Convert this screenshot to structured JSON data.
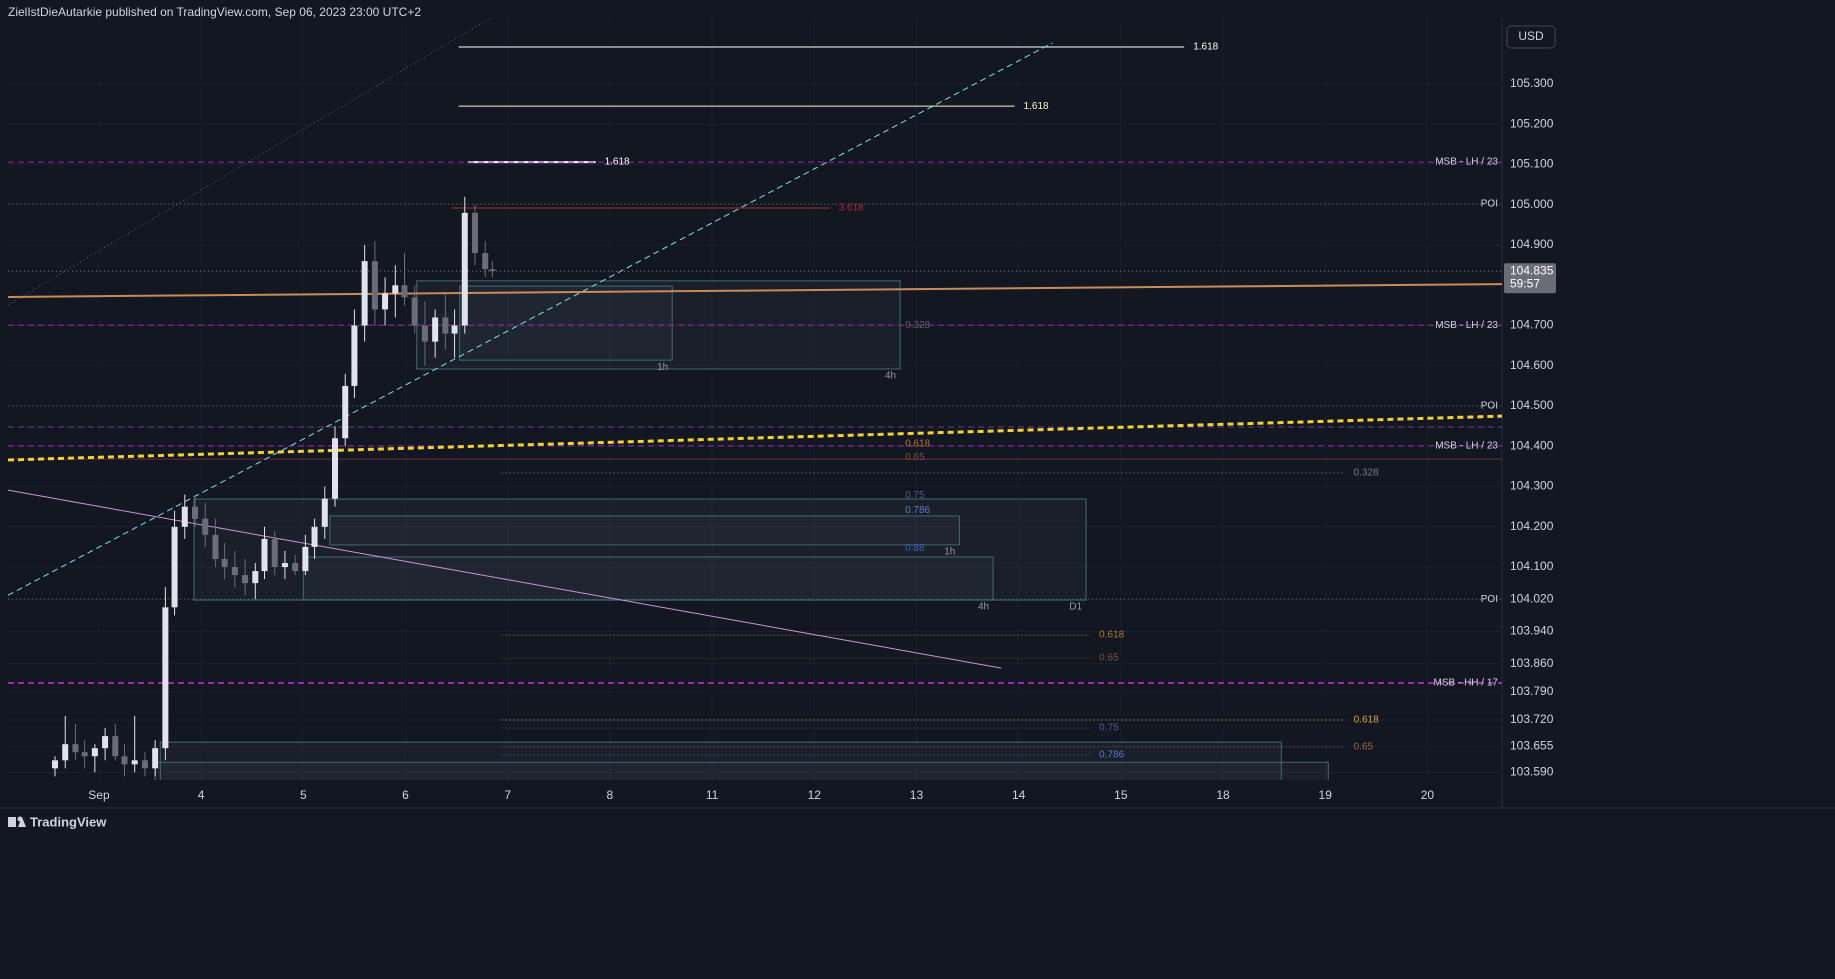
{
  "header": "ZielIstDieAutarkie published on TradingView.com, Sep 06, 2023 23:00 UTC+2",
  "currency": "USD",
  "footer": "TradingView",
  "chart_data": {
    "type": "candlestick",
    "categories": [
      "Sep",
      "4",
      "5",
      "6",
      "7",
      "8",
      "11",
      "12",
      "13",
      "14",
      "15",
      "18",
      "19",
      "20"
    ],
    "xlim": [
      -0.89,
      13.73
    ],
    "ylim": [
      103.571,
      105.464
    ],
    "yticks": [
      {
        "value": 105.3,
        "label": "105.300"
      },
      {
        "value": 105.2,
        "label": "105.200"
      },
      {
        "value": 105.1,
        "label": "105.100"
      },
      {
        "value": 105.0,
        "label": "105.000"
      },
      {
        "value": 104.9,
        "label": "104.900"
      },
      {
        "value": 104.7,
        "label": "104.700"
      },
      {
        "value": 104.6,
        "label": "104.600"
      },
      {
        "value": 104.5,
        "label": "104.500"
      },
      {
        "value": 104.4,
        "label": "104.400"
      },
      {
        "value": 104.3,
        "label": "104.300"
      },
      {
        "value": 104.2,
        "label": "104.200"
      },
      {
        "value": 104.1,
        "label": "104.100"
      },
      {
        "value": 104.02,
        "label": "104.020"
      },
      {
        "value": 103.94,
        "label": "103.940"
      },
      {
        "value": 103.86,
        "label": "103.860"
      },
      {
        "value": 103.79,
        "label": "103.790"
      },
      {
        "value": 103.72,
        "label": "103.720"
      },
      103.655,
      {
        "value": 103.59,
        "label": "103.590"
      }
    ],
    "grid": true,
    "price": 104.835,
    "countdown": "59:57",
    "up_color": "#e0e3eb",
    "down_color": "#6a6d78",
    "x": [
      -0.43,
      -0.33,
      -0.23,
      -0.14,
      -0.04,
      0.06,
      0.16,
      0.25,
      0.35,
      0.45,
      0.55,
      0.65,
      0.74,
      0.84,
      0.94,
      1.04,
      1.14,
      1.23,
      1.33,
      1.43,
      1.53,
      1.62,
      1.72,
      1.82,
      1.92,
      2.02,
      2.11,
      2.21,
      2.31,
      2.41,
      2.5,
      2.6,
      2.7,
      2.8,
      2.9,
      2.99,
      3.09,
      3.19,
      3.29,
      3.39,
      3.48,
      3.58,
      3.68,
      3.78,
      3.85
    ],
    "open": [
      103.6,
      103.62,
      103.66,
      103.64,
      103.63,
      103.65,
      103.68,
      103.63,
      103.61,
      103.62,
      103.6,
      103.65,
      104.0,
      104.2,
      104.25,
      104.22,
      104.18,
      104.12,
      104.1,
      104.08,
      104.06,
      104.09,
      104.17,
      104.1,
      104.11,
      104.09,
      104.15,
      104.2,
      104.27,
      104.42,
      104.55,
      104.7,
      104.86,
      104.74,
      104.78,
      104.8,
      104.77,
      104.7,
      104.66,
      104.72,
      104.68,
      104.7,
      104.98,
      104.88,
      104.84
    ],
    "high": [
      103.63,
      103.73,
      103.71,
      103.67,
      103.66,
      103.7,
      103.71,
      103.66,
      103.73,
      103.64,
      103.67,
      104.05,
      104.24,
      104.28,
      104.28,
      104.26,
      104.22,
      104.16,
      104.14,
      104.12,
      104.11,
      104.2,
      104.19,
      104.14,
      104.13,
      104.18,
      104.22,
      104.3,
      104.45,
      104.58,
      104.74,
      104.9,
      104.91,
      104.82,
      104.85,
      104.88,
      104.8,
      104.76,
      104.74,
      104.78,
      104.74,
      105.02,
      105.0,
      104.91,
      104.86
    ],
    "low": [
      103.58,
      103.6,
      103.62,
      103.6,
      103.59,
      103.62,
      103.62,
      103.58,
      103.59,
      103.58,
      103.58,
      103.62,
      103.98,
      104.17,
      104.2,
      104.15,
      104.1,
      104.07,
      104.05,
      104.03,
      104.02,
      104.07,
      104.08,
      104.07,
      104.08,
      104.08,
      104.12,
      104.17,
      104.25,
      104.4,
      104.52,
      104.66,
      104.7,
      104.7,
      104.72,
      104.75,
      104.68,
      104.6,
      104.62,
      104.64,
      104.62,
      104.68,
      104.85,
      104.82,
      104.82
    ],
    "close": [
      103.62,
      103.66,
      103.64,
      103.63,
      103.65,
      103.68,
      103.63,
      103.61,
      103.62,
      103.6,
      103.65,
      104.0,
      104.2,
      104.25,
      104.22,
      104.18,
      104.12,
      104.1,
      104.08,
      104.06,
      104.09,
      104.17,
      104.1,
      104.11,
      104.09,
      104.15,
      104.2,
      104.27,
      104.42,
      104.55,
      104.7,
      104.86,
      104.74,
      104.78,
      104.8,
      104.77,
      104.7,
      104.66,
      104.72,
      104.68,
      104.7,
      104.98,
      104.88,
      104.84,
      104.835
    ],
    "boxes": [
      {
        "label": "4h",
        "x1": 3.11,
        "x2": 7.84,
        "y1": 104.811,
        "y2": 104.592
      },
      {
        "label": "1h",
        "x1": 3.53,
        "x2": 5.61,
        "y1": 104.798,
        "y2": 104.614
      },
      {
        "label": "D1",
        "x1": 0.93,
        "x2": 9.66,
        "y1": 104.269,
        "y2": 104.018
      },
      {
        "label": "1h",
        "x1": 2.26,
        "x2": 8.42,
        "y1": 104.227,
        "y2": 104.155
      },
      {
        "label": "4h",
        "x1": 2.0,
        "x2": 8.75,
        "y1": 104.125,
        "y2": 104.018
      },
      {
        "x1": 0.6,
        "x2": 11.57,
        "y1": 103.665,
        "y2": 103.55
      },
      {
        "x1": 0.55,
        "x2": 12.03,
        "y1": 103.615,
        "y2": 103.55
      }
    ],
    "trendlines": [
      {
        "x1": -0.89,
        "y1": 104.751,
        "x2": 3.83,
        "y2": 105.464,
        "color": "#5d606b",
        "dash": "dotted",
        "width": 1
      },
      {
        "x1": -0.89,
        "y1": 104.03,
        "x2": 9.33,
        "y2": 105.402,
        "color": "#80deea",
        "dash": "dashed",
        "width": 1
      },
      {
        "x1": -0.89,
        "y1": 104.771,
        "x2": 13.73,
        "y2": 104.803,
        "color": "#c98a5a",
        "dash": "solid",
        "width": 2
      },
      {
        "x1": -0.89,
        "y1": 104.366,
        "x2": 13.73,
        "y2": 104.475,
        "color": "#f2d22e",
        "dash": "dashed",
        "width": 3
      },
      {
        "x1": -0.89,
        "y1": 104.291,
        "x2": 8.83,
        "y2": 103.849,
        "color": "#ce93d8",
        "dash": "solid",
        "width": 1
      }
    ],
    "levels": [
      {
        "label": "1.618",
        "y": 105.392,
        "x1": 3.52,
        "x2": 10.62,
        "color": "#ffffff",
        "dash": "solid",
        "width": 1
      },
      {
        "label": "1.618",
        "y": 105.245,
        "x1": 3.52,
        "x2": 8.96,
        "color": "#fff3c4",
        "dash": "solid",
        "width": 1
      },
      {
        "label": "1.618",
        "y": 105.106,
        "x1": 3.61,
        "x2": 4.86,
        "color": "#ffffff",
        "dash": "solid",
        "width": 2
      },
      {
        "label": "MSB - LH / 23",
        "y": 105.106,
        "x1": -0.89,
        "x2": 13.73,
        "color": "#9c27b0",
        "dash": "dashed",
        "width": 1
      },
      {
        "label": "POI",
        "y": 105.002,
        "x1": -0.89,
        "x2": 13.73,
        "color": "#5d606b",
        "dash": "dotted",
        "width": 1
      },
      {
        "label": "3.618",
        "y": 104.992,
        "x1": 3.45,
        "x2": 7.15,
        "color": "#b22833",
        "dash": "solid",
        "width": 1
      },
      {
        "label": "MSB - LH / 23",
        "y": 104.701,
        "x1": -0.89,
        "x2": 13.73,
        "color": "#9c27b0",
        "dash": "dashed",
        "width": 1
      },
      {
        "label": "POI",
        "y": 104.5,
        "x1": -0.89,
        "x2": 13.73,
        "color": "#5d606b",
        "dash": "dotted",
        "width": 1
      },
      {
        "y": 104.448,
        "x1": -0.89,
        "x2": 13.73,
        "color": "#6a3a8a",
        "dash": "dashed",
        "width": 1
      },
      {
        "label": "MSB - LH / 23",
        "y": 104.401,
        "x1": -0.89,
        "x2": 13.73,
        "color": "#9c27b0",
        "dash": "dashed",
        "width": 1
      },
      {
        "y": 104.368,
        "x1": -0.89,
        "x2": 13.73,
        "color": "#6b2a33",
        "dash": "solid",
        "width": 1
      },
      {
        "label": "0.328",
        "y": 104.334,
        "x1": 3.94,
        "x2": 12.19,
        "color": "#787b86",
        "dash": "dotted",
        "width": 1
      },
      {
        "label": "POI",
        "y": 104.02,
        "x1": -0.89,
        "x2": 13.73,
        "color": "#5d606b",
        "dash": "dotted",
        "width": 1
      },
      {
        "label": "0.618",
        "y": 103.931,
        "x1": 3.94,
        "x2": 9.7,
        "color": "#b5772f",
        "dash": "dotted",
        "width": 1
      },
      {
        "label": "0.65",
        "y": 103.874,
        "x1": 3.94,
        "x2": 9.7,
        "color": "#7a5436",
        "dash": "dotted",
        "width": 1
      },
      {
        "label": "MSB - HH / 17",
        "y": 103.812,
        "x1": -0.89,
        "x2": 13.73,
        "color": "#9c27b0",
        "dash": "dashed",
        "width": 2
      },
      {
        "label": "0.618",
        "y": 103.72,
        "x1": 3.94,
        "x2": 12.19,
        "color": "#e0a040",
        "dash": "dotted",
        "width": 1
      },
      {
        "label": "0.75",
        "y": 103.7,
        "x1": 3.94,
        "x2": 9.7,
        "color": "#4a5d8a",
        "dash": "dotted",
        "width": 1
      },
      {
        "label": "0.65",
        "y": 103.653,
        "x1": 3.94,
        "x2": 12.19,
        "color": "#9a6a3a",
        "dash": "dotted",
        "width": 1
      },
      {
        "label": "0.786",
        "y": 103.633,
        "x1": 3.94,
        "x2": 9.7,
        "color": "#5a7bc4",
        "dash": "dotted",
        "width": 1
      }
    ],
    "notes": [
      {
        "text": "0.328",
        "x": 7.84,
        "y": 104.7,
        "color": "#5d606b"
      },
      {
        "text": "0.618",
        "x": 7.84,
        "y": 104.406,
        "color": "#b5772f"
      },
      {
        "text": "0.65",
        "x": 7.84,
        "y": 104.373,
        "color": "#7a5436"
      },
      {
        "text": "0.75",
        "x": 7.84,
        "y": 104.278,
        "color": "#4a5d8a"
      },
      {
        "text": "0.786",
        "x": 7.84,
        "y": 104.241,
        "color": "#5a7bc4"
      },
      {
        "text": "0.88",
        "x": 7.84,
        "y": 104.147,
        "color": "#3f5fc4"
      }
    ]
  }
}
